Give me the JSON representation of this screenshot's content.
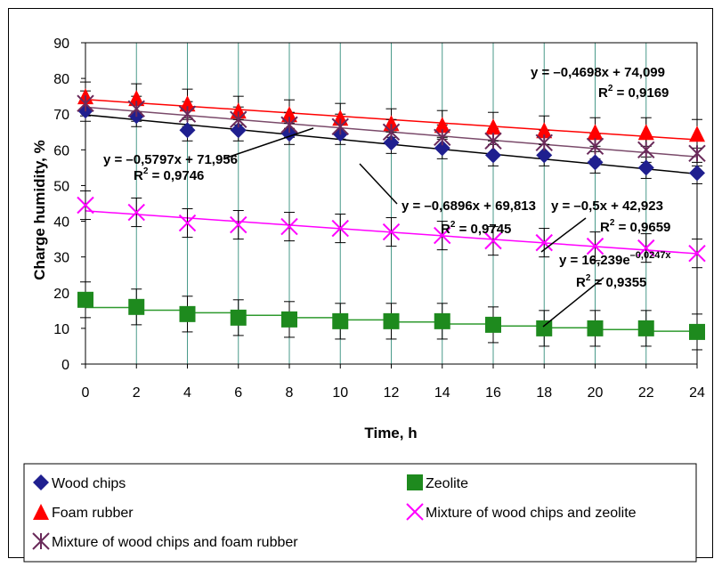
{
  "chart_data": {
    "type": "scatter",
    "xlabel": "Time, h",
    "ylabel": "Charge humidity, %",
    "xlim": [
      0,
      24
    ],
    "ylim": [
      0,
      90
    ],
    "x_ticks": [
      0,
      2,
      4,
      6,
      8,
      10,
      12,
      14,
      16,
      18,
      20,
      22,
      24
    ],
    "y_ticks": [
      0,
      10,
      20,
      30,
      40,
      50,
      60,
      70,
      80,
      90
    ],
    "grid": "vertical",
    "legend_position": "bottom",
    "x": [
      0,
      2,
      4,
      6,
      8,
      10,
      12,
      14,
      16,
      18,
      20,
      22,
      24
    ],
    "series": [
      {
        "name": "Wood chips",
        "marker": "diamond",
        "color": "#1f1f8f",
        "values": [
          71,
          69.5,
          65.5,
          65.5,
          64.5,
          64.5,
          62,
          60.5,
          58.5,
          58.5,
          56.5,
          55,
          53.5
        ],
        "error": 3,
        "trend": {
          "kind": "linear",
          "slope": -0.6896,
          "intercept": 69.813,
          "color": "#000000"
        }
      },
      {
        "name": "Zeolite",
        "marker": "square",
        "color": "#1e8a1e",
        "values": [
          18,
          16,
          14,
          13,
          12.5,
          12,
          12,
          12,
          11,
          10,
          10,
          10,
          9
        ],
        "error": 5,
        "trend": {
          "kind": "exponential",
          "a": 16.239,
          "b": -0.0247,
          "color": "#2e9a2e"
        }
      },
      {
        "name": "Foam rubber",
        "marker": "triangle",
        "color": "#ff0000",
        "values": [
          75,
          74.5,
          73,
          71,
          70,
          69,
          67.5,
          67,
          66.5,
          65.5,
          65,
          65,
          64.5
        ],
        "error": 4,
        "trend": {
          "kind": "linear",
          "slope": -0.4698,
          "intercept": 74.099,
          "color": "#ff0000"
        }
      },
      {
        "name": "Mixture of wood chips and zeolite",
        "marker": "x",
        "color": "#ff00ff",
        "values": [
          44.5,
          42.5,
          39.5,
          39,
          38.5,
          38,
          37,
          36,
          34.5,
          34,
          33,
          32.5,
          31
        ],
        "error": 4,
        "trend": {
          "kind": "linear",
          "slope": -0.5,
          "intercept": 42.923,
          "color": "#ff00ff"
        }
      },
      {
        "name": "Mixture  of wood chips and foam rubber",
        "marker": "star",
        "color": "#6a2a5a",
        "values": [
          73,
          71.5,
          70,
          68.5,
          67,
          66.5,
          65,
          63.5,
          62.5,
          62,
          61,
          60,
          59
        ],
        "error": 3.5,
        "trend": {
          "kind": "linear",
          "slope": -0.5797,
          "intercept": 71.956,
          "color": "#7a4a6a"
        }
      }
    ],
    "annotations": [
      {
        "line1": "y = –0,4698x + 74,099",
        "r2": "0,9169"
      },
      {
        "line1": "y = –0,5797x + 71,956",
        "r2": "0,9746"
      },
      {
        "line1": "y = –0,6896x + 69,813",
        "r2": "0,9745"
      },
      {
        "line1": "y = –0,5x + 42,923",
        "r2": "0,9659"
      },
      {
        "line1": "y = 16,239e",
        "exponent": "–0,0247x",
        "r2": "0,9355"
      }
    ],
    "legend": [
      "Wood chips",
      "Zeolite",
      "Foam rubber",
      "Mixture of wood chips and zeolite",
      "Mixture  of wood chips and foam rubber"
    ]
  }
}
